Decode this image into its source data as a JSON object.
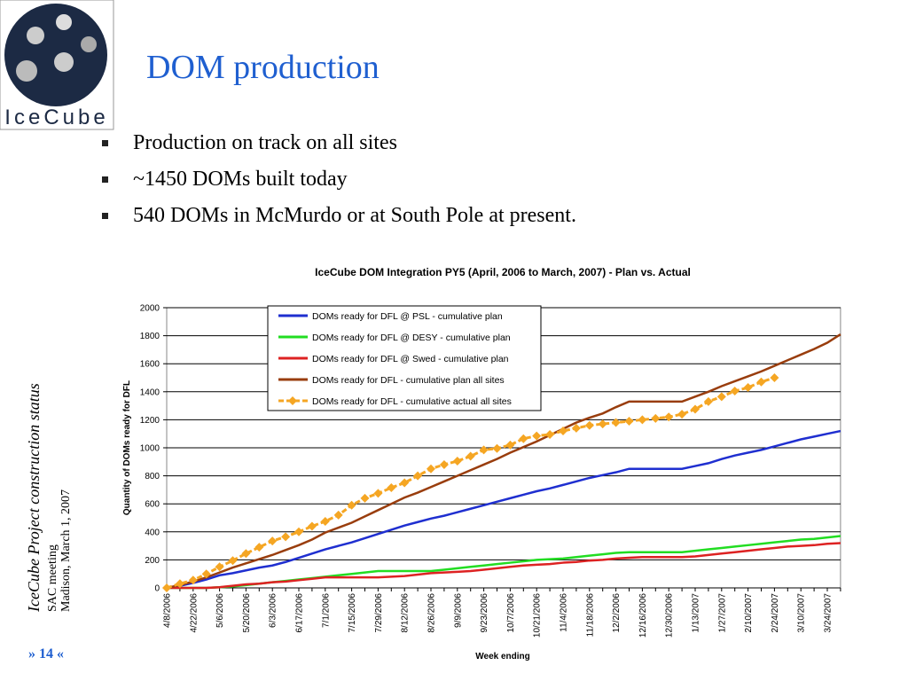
{
  "logo": {
    "text": "IceCube"
  },
  "header": {
    "title": "DOM production"
  },
  "bullets": [
    "Production on track on all sites",
    "~1450 DOMs built today",
    "540 DOMs in McMurdo or at South Pole at present."
  ],
  "sidebar": {
    "project": "IceCube Project construction status",
    "meeting": "SAC meeting",
    "place_date": "Madison, March 1, 2007"
  },
  "page_number": "» 14 «",
  "chart_data": {
    "type": "line",
    "title": "IceCube DOM Integration PY5 (April, 2006 to March, 2007) - Plan vs. Actual",
    "x_label": "Week ending",
    "y_label": "Quantity of DOMs ready for DFL",
    "categories": [
      "4/8/2006",
      null,
      "4/22/2006",
      null,
      "5/6/2006",
      null,
      "5/20/2006",
      null,
      "6/3/2006",
      null,
      "6/17/2006",
      null,
      "7/1/2006",
      null,
      "7/15/2006",
      null,
      "7/29/2006",
      null,
      "8/12/2006",
      null,
      "8/26/2006",
      null,
      "9/9/2006",
      null,
      "9/23/2006",
      null,
      "10/7/2006",
      null,
      "10/21/2006",
      null,
      "11/4/2006",
      null,
      "11/18/2006",
      null,
      "12/2/2006",
      null,
      "12/16/2006",
      null,
      "12/30/2006",
      null,
      "1/13/2007",
      null,
      "1/27/2007",
      null,
      "2/10/2007",
      null,
      "2/24/2007",
      null,
      "3/10/2007",
      null,
      "3/24/2007",
      null
    ],
    "ylim": [
      0,
      2000
    ],
    "yticks": [
      0,
      200,
      400,
      600,
      800,
      1000,
      1200,
      1400,
      1600,
      1800,
      2000
    ],
    "grid": true,
    "legend": "top",
    "series": [
      {
        "name": "DOMs ready for DFL @ PSL - cumulative plan",
        "color": "#1f2fd0",
        "values": [
          0,
          15,
          35,
          60,
          90,
          105,
          125,
          145,
          160,
          185,
          215,
          245,
          275,
          300,
          325,
          355,
          385,
          415,
          445,
          470,
          495,
          515,
          540,
          565,
          590,
          615,
          640,
          665,
          690,
          710,
          735,
          760,
          785,
          805,
          825,
          850,
          850,
          850,
          850,
          850,
          870,
          890,
          920,
          945,
          965,
          985,
          1010,
          1035,
          1060,
          1080,
          1100,
          1120
        ]
      },
      {
        "name": "DOMs ready for DFL @ DESY - cumulative plan",
        "color": "#22dd22",
        "values": [
          0,
          0,
          0,
          0,
          5,
          10,
          20,
          30,
          40,
          50,
          60,
          70,
          80,
          90,
          100,
          110,
          120,
          120,
          120,
          120,
          120,
          130,
          140,
          150,
          160,
          170,
          180,
          190,
          200,
          205,
          210,
          220,
          230,
          240,
          250,
          255,
          255,
          255,
          255,
          255,
          265,
          275,
          285,
          295,
          305,
          315,
          325,
          335,
          345,
          350,
          360,
          370
        ]
      },
      {
        "name": "DOMs ready for DFL @ Swed - cumulative plan",
        "color": "#dd2222",
        "values": [
          0,
          0,
          0,
          0,
          5,
          15,
          25,
          30,
          40,
          45,
          55,
          65,
          75,
          75,
          75,
          75,
          75,
          80,
          85,
          95,
          105,
          110,
          115,
          120,
          130,
          140,
          150,
          160,
          165,
          170,
          180,
          185,
          195,
          200,
          210,
          215,
          220,
          220,
          220,
          220,
          225,
          235,
          245,
          255,
          265,
          275,
          285,
          295,
          300,
          305,
          315,
          320
        ]
      },
      {
        "name": "DOMs ready for DFL - cumulative plan all sites",
        "color": "#993d0d",
        "values": [
          0,
          20,
          45,
          75,
          110,
          145,
          175,
          205,
          235,
          270,
          305,
          345,
          395,
          430,
          465,
          510,
          555,
          600,
          645,
          680,
          720,
          760,
          800,
          840,
          880,
          920,
          965,
          1005,
          1045,
          1090,
          1135,
          1180,
          1215,
          1245,
          1290,
          1330,
          1330,
          1330,
          1330,
          1330,
          1365,
          1400,
          1440,
          1475,
          1510,
          1545,
          1585,
          1625,
          1665,
          1705,
          1750,
          1810
        ]
      },
      {
        "name": "DOMs ready for DFL - cumulative actual all sites",
        "color": "#f5a623",
        "markers": true,
        "values": [
          0,
          30,
          55,
          100,
          150,
          195,
          245,
          290,
          335,
          365,
          400,
          440,
          475,
          520,
          590,
          640,
          675,
          715,
          750,
          800,
          850,
          880,
          905,
          940,
          985,
          995,
          1020,
          1065,
          1085,
          1095,
          1120,
          1140,
          1160,
          1170,
          1180,
          1190,
          1200,
          1210,
          1220,
          1240,
          1275,
          1330,
          1365,
          1405,
          1430,
          1470,
          1500,
          null,
          null,
          null,
          null,
          null
        ]
      }
    ]
  }
}
